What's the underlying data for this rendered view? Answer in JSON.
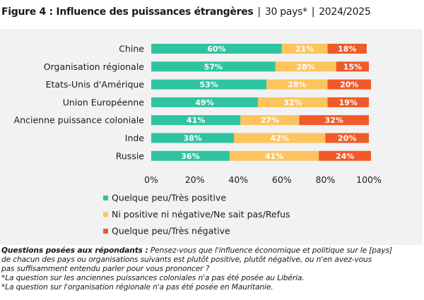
{
  "header": {
    "title_bold": "Figure 4 : Influence des puissances étrangères",
    "sample": "30 pays*",
    "period": "2024/2025"
  },
  "chart_data": {
    "type": "bar",
    "orientation": "horizontal",
    "stacked": true,
    "categories": [
      "Chine",
      "Organisation régionale",
      "Etats-Unis d'Amérique",
      "Union Européenne",
      "Ancienne puissance coloniale",
      "Inde",
      "Russie"
    ],
    "series": [
      {
        "name": "Quelque peu/Très positive",
        "color": "#2ec4a0",
        "values": [
          60,
          57,
          53,
          49,
          41,
          38,
          36
        ]
      },
      {
        "name": "Ni positive ni négative/Ne sait pas/Refus",
        "color": "#fdc45e",
        "values": [
          21,
          28,
          28,
          32,
          27,
          42,
          41
        ]
      },
      {
        "name": "Quelque peu/Très négative",
        "color": "#f05a28",
        "values": [
          18,
          15,
          20,
          19,
          32,
          20,
          24
        ]
      }
    ],
    "xlim": [
      0,
      100
    ],
    "x_ticks": [
      "0%",
      "20%",
      "40%",
      "60%",
      "80%",
      "100%"
    ],
    "value_suffix": "%",
    "legend_position": "bottom-left",
    "grid": false
  },
  "notes": {
    "question_label": "Questions posées aux répondants :",
    "question_lines": [
      " Pensez-vous que l'influence économique et politique sur le [pays]",
      "de chacun des pays ou organisations suivants est plutôt positive, plutôt négative, ou n'en avez-vous",
      "pas suffisamment entendu parler pour vous prononcer ?"
    ],
    "footnote_1": "*La question sur les anciennes puissances coloniales n'a pas été posée au Libéria.",
    "footnote_2": "*La question sur l'organisation régionale n'a pas été posée en Mauritanie."
  }
}
